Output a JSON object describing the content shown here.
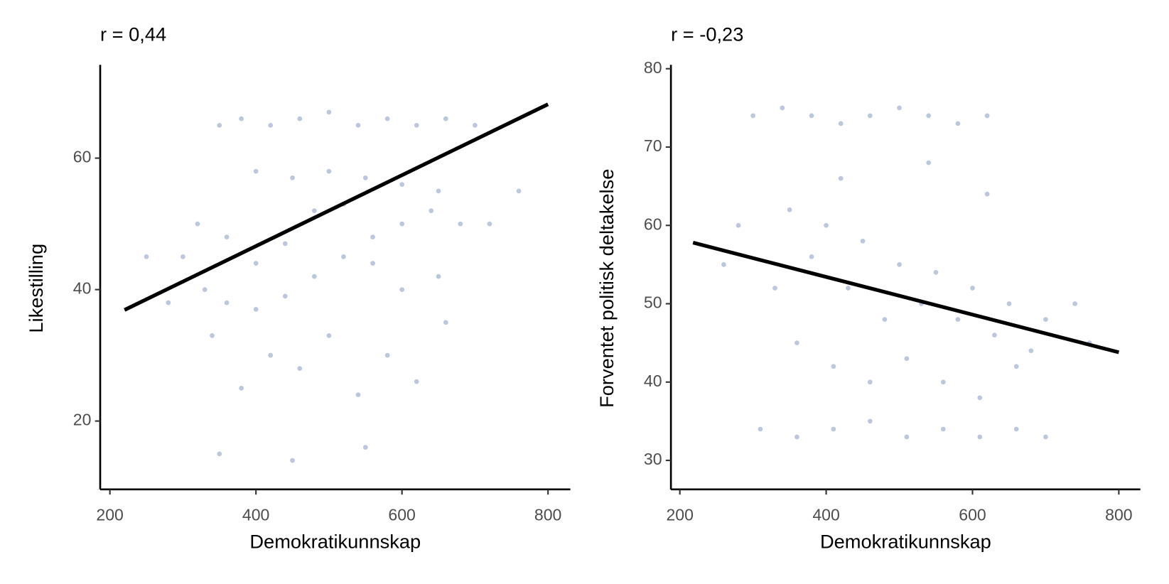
{
  "chart_data": [
    {
      "type": "scatter",
      "title": "r = 0,44",
      "x_label": "Demokratikunnskap",
      "y_label": "Likestilling",
      "color": "#3a5f9f",
      "xlim": [
        186.7,
        830.6
      ],
      "ylim": [
        9.6,
        74.2
      ],
      "xticks": [
        200,
        400,
        600,
        800
      ],
      "yticks": [
        20,
        40,
        60
      ],
      "x": [
        350,
        380,
        420,
        460,
        500,
        540,
        580,
        620,
        660,
        700,
        400,
        450,
        500,
        550,
        600,
        650,
        300,
        330,
        360,
        400,
        440,
        480,
        520,
        560,
        600,
        640,
        680,
        320,
        360,
        400,
        440,
        480,
        520,
        560,
        600,
        650,
        280,
        340,
        420,
        500,
        580,
        660,
        720,
        380,
        460,
        540,
        620,
        350,
        450,
        550,
        250,
        760
      ],
      "y": [
        65,
        66,
        65,
        66,
        67,
        65,
        66,
        65,
        66,
        65,
        58,
        57,
        58,
        57,
        56,
        55,
        45,
        40,
        38,
        37,
        39,
        42,
        45,
        48,
        50,
        52,
        50,
        50,
        48,
        44,
        47,
        52,
        53,
        44,
        40,
        42,
        38,
        33,
        30,
        33,
        30,
        35,
        50,
        25,
        28,
        24,
        26,
        15,
        14,
        16,
        45,
        55
      ],
      "trend_x": [
        220,
        800
      ],
      "trend_y": [
        36.9,
        68.2
      ]
    },
    {
      "type": "scatter",
      "title": "r = -0,23",
      "x_label": "Demokratikunnskap",
      "y_label": "Forventet politisk deltakelse",
      "color": "#3a5f9f",
      "xlim": [
        187.8,
        829.4
      ],
      "ylim": [
        26.3,
        80.5
      ],
      "xticks": [
        200,
        400,
        600,
        800
      ],
      "yticks": [
        30,
        40,
        50,
        60,
        70,
        80
      ],
      "x": [
        300,
        340,
        380,
        420,
        460,
        500,
        540,
        580,
        620,
        350,
        400,
        450,
        500,
        550,
        600,
        650,
        700,
        330,
        380,
        430,
        480,
        530,
        580,
        630,
        680,
        360,
        410,
        460,
        510,
        560,
        610,
        660,
        310,
        360,
        410,
        460,
        510,
        560,
        610,
        660,
        700,
        260,
        280,
        740,
        760,
        420,
        540,
        620
      ],
      "y": [
        74,
        75,
        74,
        73,
        74,
        75,
        74,
        73,
        74,
        62,
        60,
        58,
        55,
        54,
        52,
        50,
        48,
        52,
        56,
        52,
        48,
        50,
        48,
        46,
        44,
        45,
        42,
        40,
        43,
        40,
        38,
        42,
        34,
        33,
        34,
        35,
        33,
        34,
        33,
        34,
        33,
        55,
        60,
        50,
        45,
        66,
        68,
        64
      ],
      "trend_x": [
        218,
        800
      ],
      "trend_y": [
        57.8,
        43.8
      ]
    }
  ]
}
